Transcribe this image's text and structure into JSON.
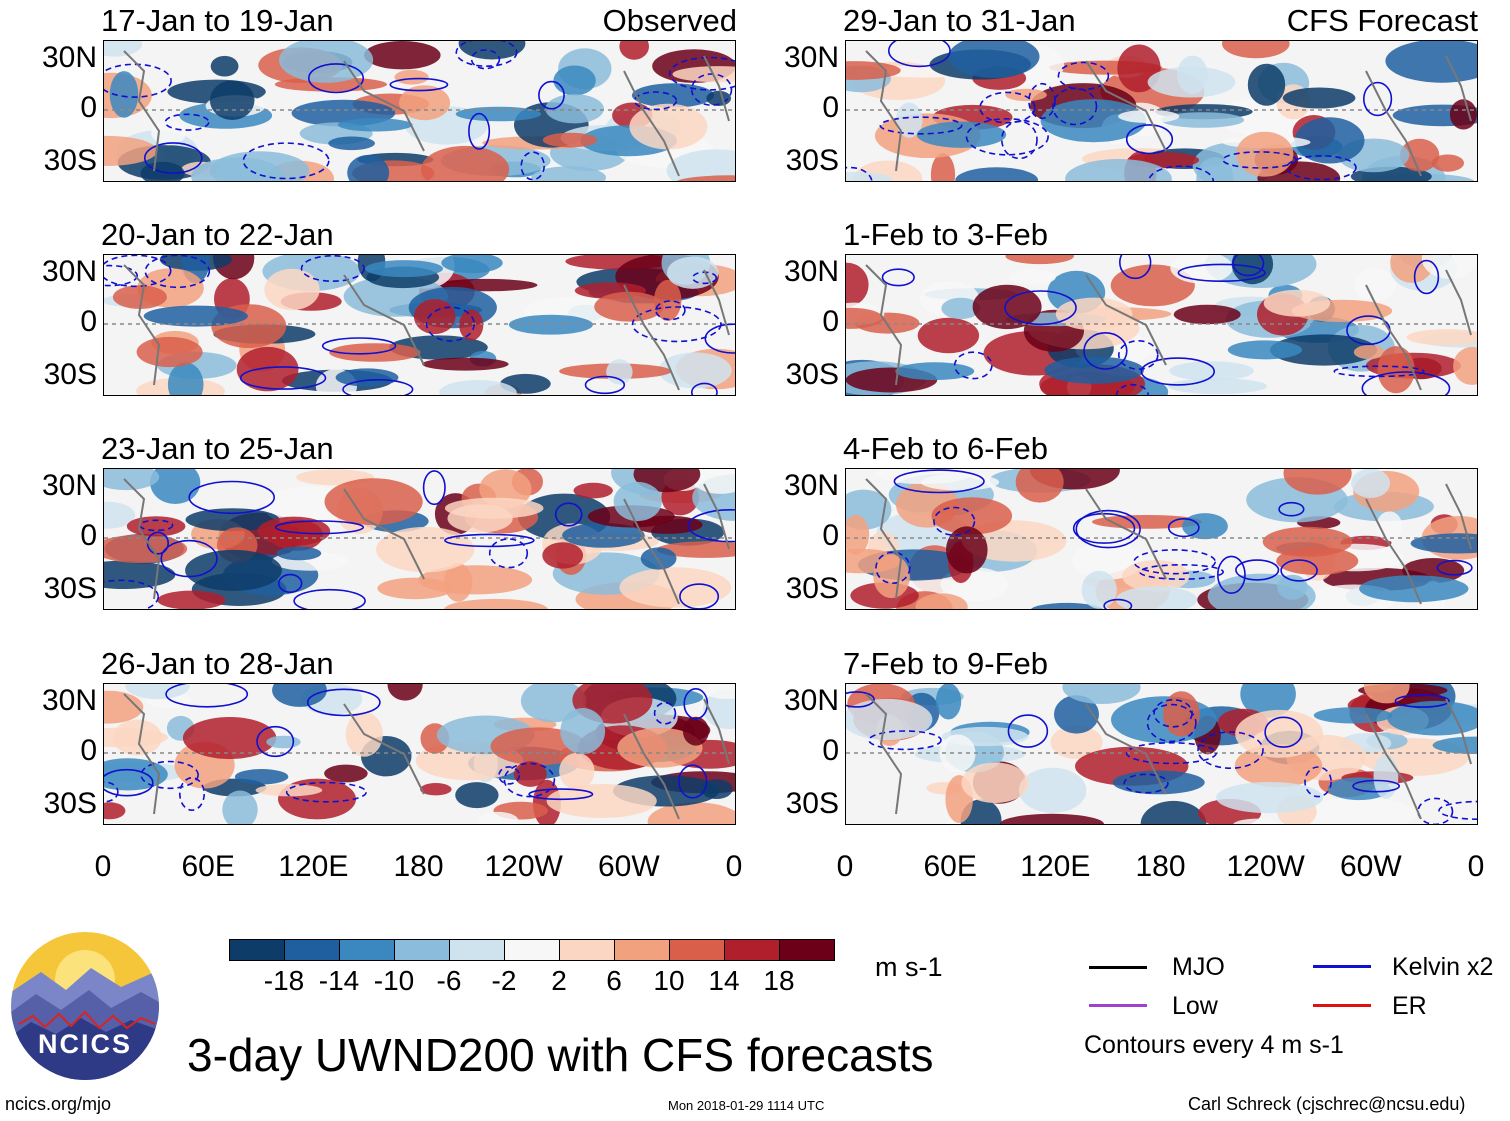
{
  "title": "3-day UWND200 with CFS forecasts",
  "units": "m s-1",
  "left_column_label": "Observed",
  "right_column_label": "CFS Forecast",
  "panels_left": [
    {
      "period": "17-Jan to 19-Jan"
    },
    {
      "period": "20-Jan to 22-Jan"
    },
    {
      "period": "23-Jan to 25-Jan"
    },
    {
      "period": "26-Jan to 28-Jan"
    }
  ],
  "panels_right": [
    {
      "period": "29-Jan to 31-Jan"
    },
    {
      "period": "1-Feb to 3-Feb"
    },
    {
      "period": "4-Feb to 6-Feb"
    },
    {
      "period": "7-Feb to 9-Feb"
    }
  ],
  "lat_labels": [
    "30N",
    "0",
    "30S"
  ],
  "lon_labels": [
    "0",
    "60E",
    "120E",
    "180",
    "120W",
    "60W",
    "0"
  ],
  "colorbar": {
    "labels": [
      "-18",
      "-14",
      "-10",
      "-6",
      "-2",
      "2",
      "6",
      "10",
      "14",
      "18"
    ],
    "colors": [
      "#0d3c69",
      "#1f5fa0",
      "#3a88bf",
      "#8bbcdb",
      "#cfe3ef",
      "#f7f7f7",
      "#fbd7c3",
      "#f2a17f",
      "#d95f4b",
      "#b01f2c",
      "#6b0018"
    ]
  },
  "legend": {
    "mjo": "MJO",
    "kelvin": "Kelvin x2",
    "low": "Low",
    "er": "ER",
    "contours": "Contours every 4 m s-1",
    "colors": {
      "mjo": "#000000",
      "kelvin": "#1010d0",
      "low": "#a040d0",
      "er": "#e01010"
    }
  },
  "logo_text": "NCICS",
  "footer": {
    "url": "ncics.org/mjo",
    "timestamp": "Mon 2018-01-29 1114 UTC",
    "author": "Carl Schreck (cjschrec@ncsu.edu)"
  }
}
